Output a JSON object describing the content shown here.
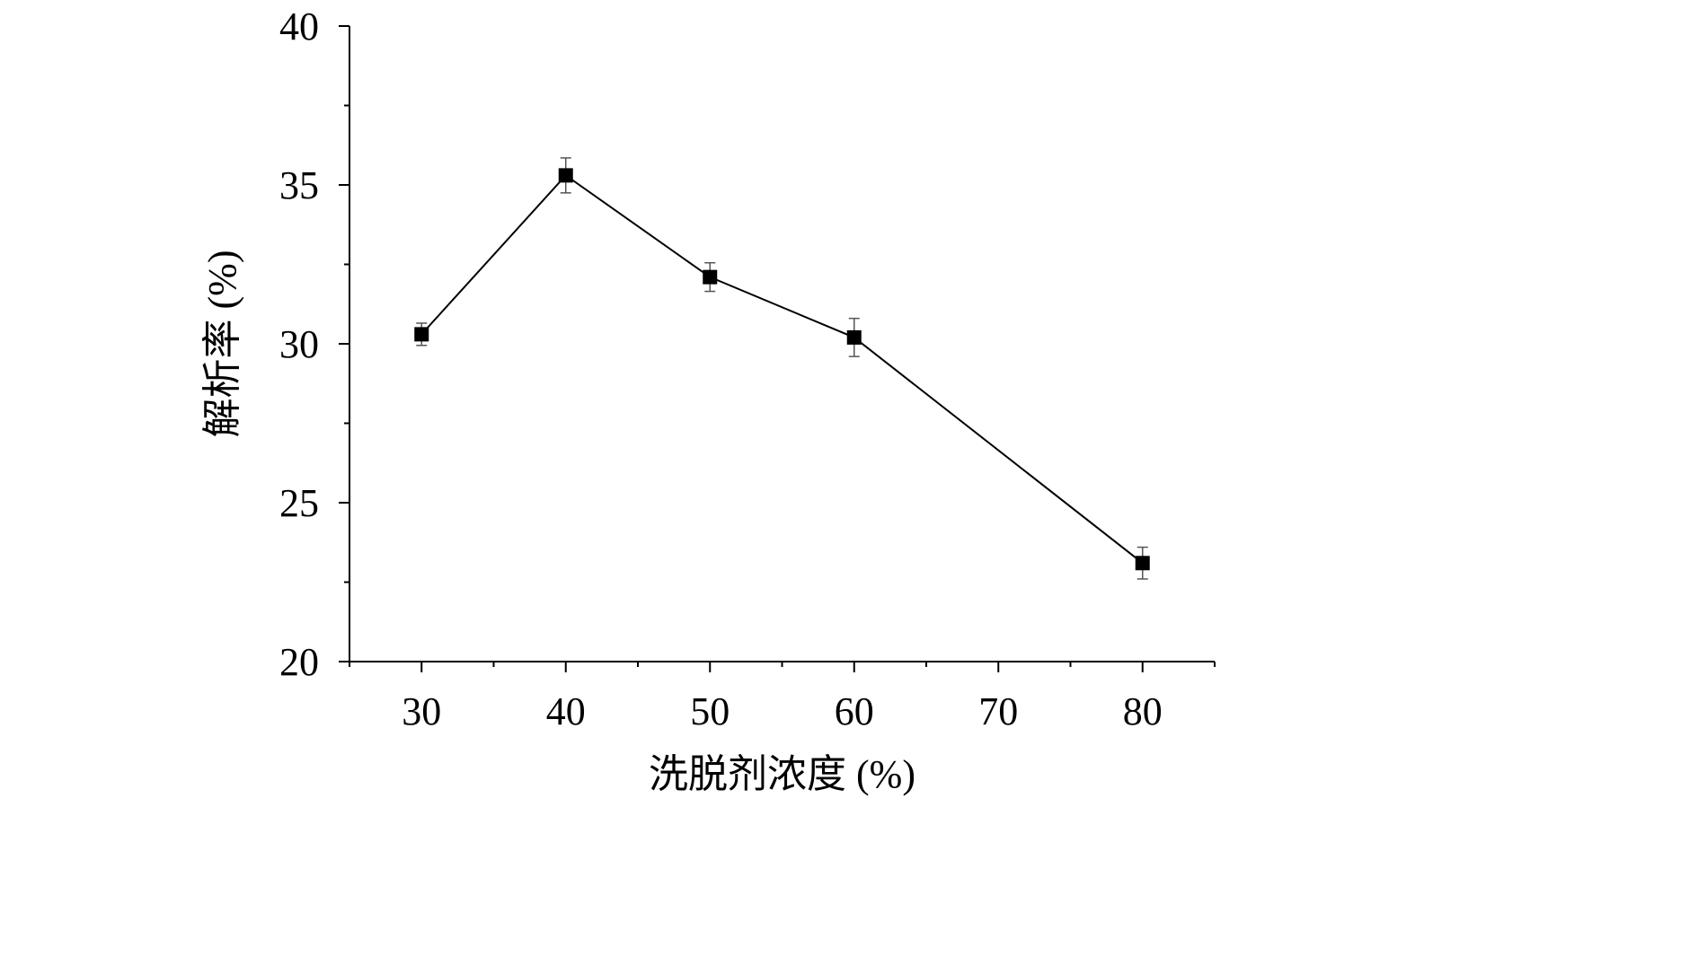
{
  "chart_data": {
    "type": "line",
    "title": "",
    "xlabel": "洗脱剂浓度 (%)",
    "ylabel": "解析率 (%)",
    "xlim": [
      25,
      85
    ],
    "ylim": [
      20,
      40
    ],
    "x_ticks": [
      30,
      40,
      50,
      60,
      70,
      80
    ],
    "y_ticks": [
      20,
      25,
      30,
      35,
      40
    ],
    "x_minor_ticks": [
      25,
      35,
      45,
      55,
      65,
      75,
      85
    ],
    "y_minor_ticks": [
      22.5,
      27.5,
      32.5,
      37.5
    ],
    "grid": false,
    "series": [
      {
        "x": [
          30,
          40,
          50,
          60,
          80
        ],
        "y": [
          30.3,
          35.3,
          32.1,
          30.2,
          23.1
        ],
        "error": [
          0.35,
          0.55,
          0.45,
          0.6,
          0.5
        ],
        "marker": "square",
        "color": "#000000"
      }
    ]
  }
}
